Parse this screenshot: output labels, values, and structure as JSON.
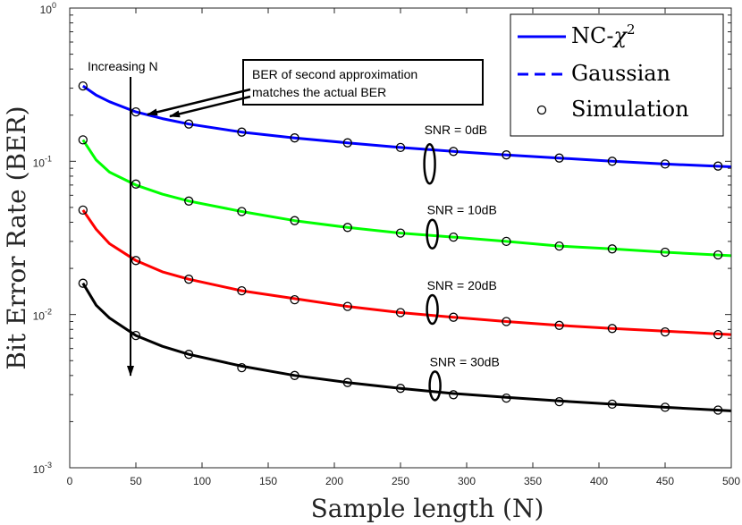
{
  "chart_data": {
    "type": "line",
    "xlabel": "Sample length (N)",
    "ylabel": "Bit Error Rate (BER)",
    "xlim": [
      0,
      500
    ],
    "ylim": [
      0.001,
      1
    ],
    "yscale": "log",
    "xticks": [
      0,
      50,
      100,
      150,
      200,
      250,
      300,
      350,
      400,
      450,
      500
    ],
    "xtick_labels": [
      "0",
      "50",
      "100",
      "150",
      "200",
      "250",
      "300",
      "350",
      "400",
      "450",
      "500"
    ],
    "yticks": [
      1,
      0.1,
      0.01,
      0.001
    ],
    "ytick_labels": [
      {
        "base": "10",
        "exp": "0"
      },
      {
        "base": "10",
        "exp": "-1"
      },
      {
        "base": "10",
        "exp": "-2"
      },
      {
        "base": "10",
        "exp": "-3"
      }
    ],
    "legend": {
      "position": "top-right",
      "entries": [
        {
          "label": "NC-",
          "math": "χ",
          "sup": "2",
          "style": "solid",
          "color": "#0000ff"
        },
        {
          "label": "Gaussian",
          "style": "dashed",
          "color": "#0000ff"
        },
        {
          "label": "Simulation",
          "style": "marker",
          "color": "#000000"
        }
      ]
    },
    "sim_x": [
      10,
      50,
      90,
      130,
      170,
      210,
      250,
      290,
      330,
      370,
      410,
      450,
      490
    ],
    "series": [
      {
        "name": "SNR = 0dB",
        "color": "#0000ff",
        "curve_x": [
          10,
          20,
          30,
          50,
          70,
          90,
          130,
          170,
          210,
          250,
          290,
          330,
          370,
          410,
          450,
          500
        ],
        "curve_y": [
          0.31,
          0.27,
          0.245,
          0.21,
          0.19,
          0.175,
          0.155,
          0.142,
          0.132,
          0.123,
          0.116,
          0.11,
          0.105,
          0.1,
          0.096,
          0.092
        ],
        "sim_y": [
          0.31,
          0.21,
          0.175,
          0.155,
          0.142,
          0.132,
          0.123,
          0.116,
          0.11,
          0.105,
          0.1,
          0.096,
          0.093
        ],
        "snr_label": "SNR = 0dB",
        "label_x": 268,
        "label_y": 0.15
      },
      {
        "name": "SNR = 10dB",
        "color": "#00ff00",
        "curve_x": [
          10,
          20,
          30,
          50,
          70,
          90,
          130,
          170,
          210,
          250,
          290,
          330,
          370,
          410,
          450,
          500
        ],
        "curve_y": [
          0.138,
          0.102,
          0.085,
          0.07,
          0.061,
          0.055,
          0.047,
          0.041,
          0.037,
          0.034,
          0.032,
          0.03,
          0.028,
          0.0268,
          0.0255,
          0.0242
        ],
        "sim_y": [
          0.138,
          0.071,
          0.055,
          0.047,
          0.041,
          0.037,
          0.034,
          0.032,
          0.03,
          0.028,
          0.0268,
          0.0255,
          0.0245
        ],
        "snr_label": "SNR = 10dB",
        "label_x": 270,
        "label_y": 0.045
      },
      {
        "name": "SNR = 20dB",
        "color": "#ff0000",
        "curve_x": [
          10,
          20,
          30,
          50,
          70,
          90,
          130,
          170,
          210,
          250,
          290,
          330,
          370,
          410,
          450,
          500
        ],
        "curve_y": [
          0.048,
          0.036,
          0.029,
          0.0225,
          0.019,
          0.017,
          0.0143,
          0.0127,
          0.0113,
          0.0103,
          0.0096,
          0.009,
          0.0085,
          0.0081,
          0.0078,
          0.0074
        ],
        "sim_y": [
          0.048,
          0.0225,
          0.017,
          0.0143,
          0.0125,
          0.0113,
          0.0103,
          0.0096,
          0.009,
          0.0085,
          0.0081,
          0.0077,
          0.0074
        ],
        "snr_label": "SNR = 20dB",
        "label_x": 270,
        "label_y": 0.0145
      },
      {
        "name": "SNR = 30dB",
        "color": "#000000",
        "curve_x": [
          10,
          20,
          30,
          50,
          70,
          90,
          130,
          170,
          210,
          250,
          290,
          330,
          370,
          410,
          450,
          500
        ],
        "curve_y": [
          0.016,
          0.0115,
          0.0095,
          0.0073,
          0.0062,
          0.0055,
          0.0046,
          0.004,
          0.0036,
          0.0033,
          0.00305,
          0.00288,
          0.00273,
          0.0026,
          0.00248,
          0.00235
        ],
        "sim_y": [
          0.016,
          0.0073,
          0.0055,
          0.0045,
          0.004,
          0.0036,
          0.0033,
          0.003,
          0.00285,
          0.0027,
          0.0026,
          0.00248,
          0.00238
        ],
        "snr_label": "SNR = 30dB",
        "label_x": 272,
        "label_y": 0.0046
      }
    ],
    "annotations": {
      "increasing_n": "Increasing N",
      "box_line1": "BER of second approximation",
      "box_line2": "matches the actual BER"
    }
  }
}
